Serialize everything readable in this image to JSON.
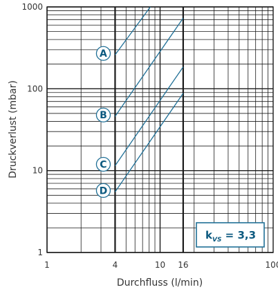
{
  "chart_data": {
    "type": "line",
    "x_scale": "log",
    "y_scale": "log",
    "xlabel": "Durchfluss (l/min)",
    "ylabel": "Druckverlust (mbar)",
    "xlim": [
      1,
      100
    ],
    "ylim": [
      1,
      1000
    ],
    "x_ticks": [
      1,
      4,
      10,
      16,
      100
    ],
    "y_ticks": [
      1,
      10,
      100,
      1000
    ],
    "grid": true,
    "emphasized_gridlines_x": [
      4,
      16
    ],
    "annotation": {
      "main": "k",
      "subscript": "VS",
      "value": " = 3,3"
    },
    "series": [
      {
        "name": "A",
        "x": [
          4,
          8.2
        ],
        "y": [
          260,
          1000
        ]
      },
      {
        "name": "B",
        "x": [
          4,
          16
        ],
        "y": [
          46,
          730
        ]
      },
      {
        "name": "C",
        "x": [
          4,
          16
        ],
        "y": [
          11.5,
          185
        ]
      },
      {
        "name": "D",
        "x": [
          4,
          16
        ],
        "y": [
          5.5,
          88
        ]
      }
    ],
    "colors": {
      "line": "#1f6f96",
      "label": "#0d5a80",
      "grid": "#1a1a1a",
      "box": "#1f6f96"
    }
  }
}
